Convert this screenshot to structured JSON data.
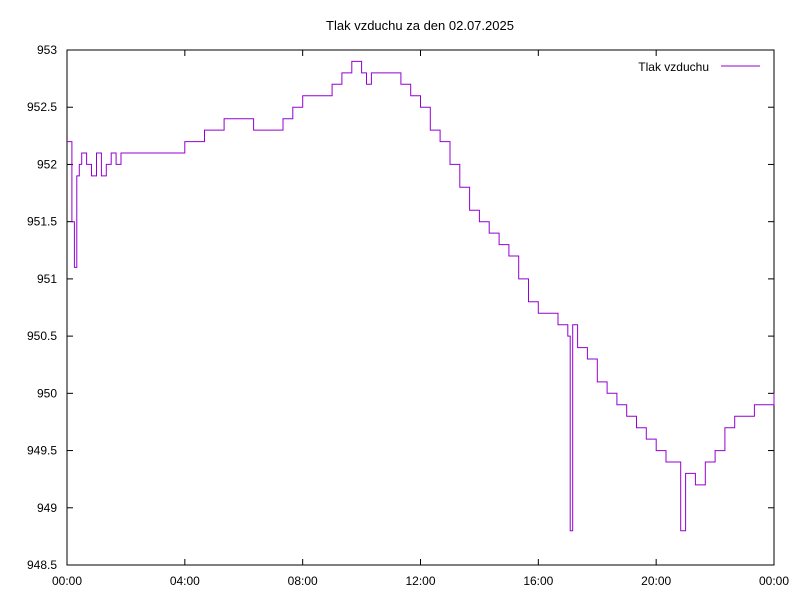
{
  "chart_data": {
    "type": "line",
    "title": "Tlak vzduchu za den 02.07.2025",
    "xlabel": "",
    "ylabel": "",
    "xlim": [
      "00:00",
      "24:00"
    ],
    "ylim": [
      948.5,
      953
    ],
    "x_tick_labels": [
      "00:00",
      "04:00",
      "08:00",
      "12:00",
      "16:00",
      "20:00",
      "00:00"
    ],
    "y_tick_labels": [
      "948.5",
      "949",
      "949.5",
      "950",
      "950.5",
      "951",
      "951.5",
      "952",
      "952.5",
      "953"
    ],
    "grid": false,
    "legend_position": "top-right",
    "series": [
      {
        "name": "Tlak vzduchu",
        "color": "#9400d3",
        "x": [
          "00:00",
          "00:10",
          "00:15",
          "00:20",
          "00:25",
          "00:30",
          "00:40",
          "00:50",
          "01:00",
          "01:10",
          "01:20",
          "01:30",
          "01:40",
          "01:50",
          "02:00",
          "02:20",
          "02:40",
          "03:00",
          "03:20",
          "03:40",
          "04:00",
          "04:20",
          "04:40",
          "05:00",
          "05:20",
          "05:40",
          "06:00",
          "06:20",
          "06:40",
          "07:00",
          "07:20",
          "07:40",
          "08:00",
          "08:20",
          "08:40",
          "09:00",
          "09:20",
          "09:40",
          "09:50",
          "10:00",
          "10:10",
          "10:20",
          "10:40",
          "11:00",
          "11:20",
          "11:40",
          "12:00",
          "12:20",
          "12:40",
          "13:00",
          "13:20",
          "13:40",
          "14:00",
          "14:20",
          "14:40",
          "15:00",
          "15:20",
          "15:40",
          "16:00",
          "16:20",
          "16:40",
          "17:00",
          "17:05",
          "17:10",
          "17:20",
          "17:40",
          "18:00",
          "18:20",
          "18:40",
          "19:00",
          "19:20",
          "19:40",
          "20:00",
          "20:20",
          "20:40",
          "20:50",
          "21:00",
          "21:20",
          "21:40",
          "22:00",
          "22:20",
          "22:40",
          "23:00",
          "23:20",
          "23:40",
          "24:00"
        ],
        "values": [
          952.2,
          951.5,
          951.1,
          951.9,
          952.0,
          952.1,
          952.0,
          951.9,
          952.1,
          951.9,
          952.0,
          952.1,
          952.0,
          952.1,
          952.1,
          952.1,
          952.1,
          952.1,
          952.1,
          952.1,
          952.2,
          952.2,
          952.3,
          952.3,
          952.4,
          952.4,
          952.4,
          952.3,
          952.3,
          952.3,
          952.4,
          952.5,
          952.6,
          952.6,
          952.6,
          952.7,
          952.8,
          952.9,
          952.9,
          952.8,
          952.7,
          952.8,
          952.8,
          952.8,
          952.7,
          952.6,
          952.5,
          952.3,
          952.2,
          952.0,
          951.8,
          951.6,
          951.5,
          951.4,
          951.3,
          951.2,
          951.0,
          950.8,
          950.7,
          950.7,
          950.6,
          950.5,
          948.8,
          950.6,
          950.4,
          950.3,
          950.1,
          950.0,
          949.9,
          949.8,
          949.7,
          949.6,
          949.5,
          949.4,
          949.4,
          948.8,
          949.3,
          949.2,
          949.4,
          949.5,
          949.7,
          949.8,
          949.8,
          949.9,
          949.9,
          950.0
        ]
      }
    ]
  }
}
